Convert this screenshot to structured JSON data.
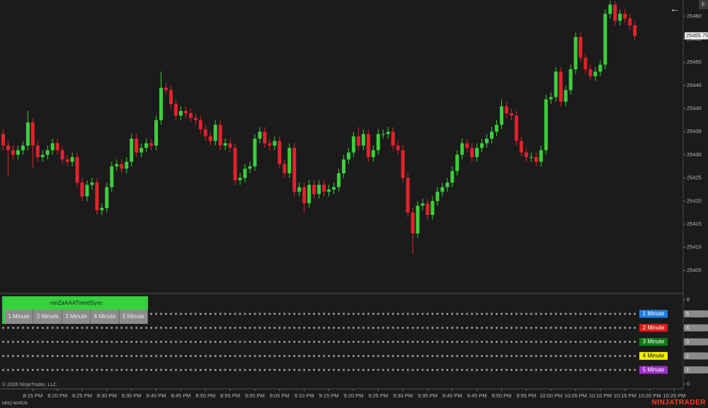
{
  "chart_data": [
    {
      "type": "candlestick",
      "instrument": "MNQ MAR26",
      "copyright": "© 2026 NinjaTrader, LLC",
      "brand": "NINJATRADER",
      "corner_button": "F",
      "up_color": "#3ccf3c",
      "down_color": "#e3222c",
      "open": [
        25434.5,
        25432,
        25431,
        25430,
        25431,
        25432,
        25437,
        25432,
        25429.5,
        25430,
        25431,
        25432.5,
        25431,
        25429,
        25428.5,
        25429.5,
        25424,
        25421,
        25423.5,
        25424,
        25418,
        25418.5,
        25423,
        25427.5,
        25428,
        25427,
        25428.5,
        25433.5,
        25430.5,
        25431.5,
        25432.5,
        25432,
        25437.5,
        25444.5,
        25444,
        25441,
        25438.5,
        25439.5,
        25439,
        25438,
        25437.5,
        25435.5,
        25434,
        25433,
        25436.5,
        25432,
        25432.5,
        25431.5,
        25424.5,
        25425,
        25427,
        25427.5,
        25433.5,
        25435,
        25432.5,
        25432,
        25433,
        25428,
        25426,
        25431.5,
        25422,
        25423,
        25419.5,
        25423.5,
        25421.5,
        25423.5,
        25422,
        25422.5,
        25423,
        25426,
        25429,
        25430.5,
        25434,
        25432,
        25434.5,
        25429.5,
        25431,
        25434.5,
        25434.5,
        25435,
        25432,
        25431,
        25425,
        25417.5,
        25413,
        25419,
        25419.5,
        25417,
        25420,
        25422,
        25423,
        25424,
        25426.5,
        25430,
        25432.5,
        25431.5,
        25429.5,
        25431.5,
        25432.5,
        25433.5,
        25435,
        25436.5,
        25440.5,
        25439,
        25438.5,
        25433,
        25430.5,
        25429.5,
        25429.5,
        25428.5,
        25431,
        25442,
        25442.5,
        25448,
        25441.5,
        25444,
        25448.5,
        25455.5,
        25451,
        25448.5,
        25447,
        25448,
        25449.5,
        25460.5,
        25462.5,
        25459,
        25460.5,
        25459.5,
        25458
      ],
      "high": [
        25435.5,
        25433,
        25432,
        25432,
        25433,
        25439.5,
        25438,
        25433,
        25431,
        25432,
        25433.5,
        25433.5,
        25432,
        25430,
        25430.5,
        25430.5,
        25425,
        25424.5,
        25425,
        25425,
        25419.5,
        25424,
        25428.5,
        25429,
        25429,
        25429.5,
        25434.5,
        25434.5,
        25432.5,
        25433.5,
        25433.5,
        25438.5,
        25448,
        25445.5,
        25445,
        25442,
        25440.5,
        25440.5,
        25440,
        25439,
        25438.5,
        25436.5,
        25435,
        25437.5,
        25437.5,
        25433.5,
        25433.5,
        25432.5,
        25426,
        25428,
        25428.5,
        25434.5,
        25436,
        25436,
        25433.5,
        25434,
        25434,
        25429,
        25432.5,
        25432.5,
        25424,
        25424,
        25424.5,
        25424.5,
        25424.5,
        25424.5,
        25423.5,
        25424,
        25427,
        25430,
        25431.5,
        25435,
        25436,
        25435.5,
        25435.5,
        25432,
        25435.5,
        25435.5,
        25436,
        25436,
        25433,
        25432,
        25426,
        25418.5,
        25420,
        25420.5,
        25420.5,
        25421,
        25423,
        25424,
        25425,
        25427.5,
        25431,
        25433.5,
        25433.5,
        25432.5,
        25432.5,
        25433.5,
        25434.5,
        25436,
        25437.5,
        25442,
        25441.5,
        25440,
        25439.5,
        25434,
        25431.5,
        25430.5,
        25430.5,
        25432,
        25443,
        25443.5,
        25449,
        25449,
        25445,
        25449.5,
        25456.5,
        25456.5,
        25452,
        25449.5,
        25449,
        25450.5,
        25461.5,
        25463.25,
        25463.25,
        25461.5,
        25461.5,
        25460.5,
        25459
      ],
      "low": [
        25431,
        25425.5,
        25429,
        25429,
        25430,
        25431,
        25427,
        25428.5,
        25428.5,
        25429,
        25430,
        25430,
        25428,
        25427.5,
        25427.5,
        25423,
        25420,
        25420,
        25422.5,
        25417,
        25417,
        25417.5,
        25422,
        25426.5,
        25426,
        25426,
        25427.5,
        25429.5,
        25429.5,
        25430.5,
        25431,
        25431,
        25436.5,
        25443,
        25440,
        25437.5,
        25437.5,
        25438,
        25437,
        25436.5,
        25434.5,
        25433,
        25432,
        25432,
        25431,
        25431,
        25430.5,
        25423.5,
        25423.5,
        25424,
        25426,
        25426.5,
        25432.5,
        25431.5,
        25431,
        25431,
        25427,
        25425,
        25425,
        25421,
        25421,
        25417.5,
        25418.5,
        25420.5,
        25420.5,
        25421,
        25421,
        25421.5,
        25422,
        25425,
        25428,
        25429.5,
        25431,
        25431,
        25428.5,
        25428.5,
        25430,
        25433.5,
        25433.5,
        25431,
        25430,
        25424,
        25416.5,
        25408.5,
        25412,
        25418,
        25416,
        25416,
        25419,
        25421,
        25422,
        25423,
        25425.5,
        25429,
        25430.5,
        25428.5,
        25428.5,
        25430.5,
        25431.5,
        25432.5,
        25434,
        25435.5,
        25438,
        25437.5,
        25432,
        25429.5,
        25428.5,
        25428.5,
        25427.5,
        25427.5,
        25430,
        25441,
        25441.5,
        25440.5,
        25440.5,
        25443,
        25447.5,
        25450,
        25447.5,
        25446,
        25446,
        25447,
        25448.5,
        25459.5,
        25458,
        25458,
        25458.5,
        25457,
        25454.75
      ],
      "close": [
        25432,
        25431,
        25430,
        25431,
        25432,
        25437,
        25432,
        25429.5,
        25430,
        25431,
        25432.5,
        25431,
        25429,
        25428.5,
        25429.5,
        25424,
        25421,
        25423.5,
        25424,
        25418,
        25418.5,
        25423,
        25427.5,
        25428,
        25427,
        25428.5,
        25433.5,
        25430.5,
        25431.5,
        25432.5,
        25432,
        25437.5,
        25444.5,
        25444,
        25441,
        25438.5,
        25439.5,
        25439,
        25438,
        25437.5,
        25435.5,
        25434,
        25433,
        25436.5,
        25432,
        25432.5,
        25431.5,
        25424.5,
        25425,
        25427,
        25427.5,
        25433.5,
        25435,
        25432.5,
        25432,
        25433,
        25428,
        25426,
        25431.5,
        25422,
        25423,
        25419.5,
        25423.5,
        25421.5,
        25423.5,
        25422,
        25422.5,
        25423,
        25426,
        25429,
        25430.5,
        25434,
        25432,
        25434.5,
        25429.5,
        25431,
        25434.5,
        25434.5,
        25435,
        25432,
        25431,
        25425,
        25417.5,
        25413,
        25419,
        25419.5,
        25417,
        25420,
        25422,
        25423,
        25424,
        25426.5,
        25430,
        25432.5,
        25431.5,
        25429.5,
        25431.5,
        25432.5,
        25433.5,
        25435,
        25436.5,
        25440.5,
        25439,
        25438.5,
        25433,
        25430.5,
        25429.5,
        25429.5,
        25428.5,
        25431,
        25442,
        25442.5,
        25448,
        25441.5,
        25444,
        25448.5,
        25455.5,
        25451,
        25448.5,
        25447,
        25448,
        25449.5,
        25460.5,
        25462.5,
        25459,
        25460.5,
        25459.5,
        25458,
        25455.75
      ],
      "ylim": [
        25400,
        25463.5
      ],
      "yticks": [
        25405,
        25410,
        25415,
        25420,
        25425,
        25430,
        25435,
        25440,
        25445,
        25450,
        25455,
        25460
      ],
      "xticks": [
        {
          "value": 6,
          "label": "8:15 PM"
        },
        {
          "value": 11,
          "label": "8:20 PM"
        },
        {
          "value": 16,
          "label": "8:25 PM"
        },
        {
          "value": 21,
          "label": "8:30 PM"
        },
        {
          "value": 26,
          "label": "8:35 PM"
        },
        {
          "value": 31,
          "label": "8:40 PM"
        },
        {
          "value": 36,
          "label": "8:45 PM"
        },
        {
          "value": 41,
          "label": "8:50 PM"
        },
        {
          "value": 46,
          "label": "8:55 PM"
        },
        {
          "value": 51,
          "label": "9:00 PM"
        },
        {
          "value": 56,
          "label": "9:05 PM"
        },
        {
          "value": 61,
          "label": "9:10 PM"
        },
        {
          "value": 66,
          "label": "9:15 PM"
        },
        {
          "value": 71,
          "label": "9:20 PM"
        },
        {
          "value": 76,
          "label": "9:25 PM"
        },
        {
          "value": 81,
          "label": "9:30 PM"
        },
        {
          "value": 86,
          "label": "9:35 PM"
        },
        {
          "value": 91,
          "label": "9:40 PM"
        },
        {
          "value": 96,
          "label": "9:45 PM"
        },
        {
          "value": 101,
          "label": "9:50 PM"
        },
        {
          "value": 106,
          "label": "9:55 PM"
        },
        {
          "value": 111,
          "label": "10:00 PM"
        },
        {
          "value": 116,
          "label": "10:05 PM"
        },
        {
          "value": 121,
          "label": "10:10 PM"
        },
        {
          "value": 126,
          "label": "10:15 PM"
        },
        {
          "value": 131,
          "label": "10:20 PM"
        },
        {
          "value": 136,
          "label": "10:25 PM"
        }
      ]
    },
    {
      "type": "dots",
      "title": "ninZaAAATrendSync",
      "dot_color": "#9a9a9a",
      "series": [
        {
          "name": "1 Minute",
          "color": "#1e7fe6",
          "level": 5
        },
        {
          "name": "2 Minute",
          "color": "#e01a1a",
          "level": 4
        },
        {
          "name": "3 Minute",
          "color": "#0f7a12",
          "level": 3
        },
        {
          "name": "4 Minute",
          "color": "#f4f000",
          "level": 2
        },
        {
          "name": "5 Minute",
          "color": "#9b2fc9",
          "level": 1
        }
      ],
      "ylim": [
        0,
        6
      ],
      "yticks": [
        0,
        1,
        2,
        3,
        4,
        5,
        6
      ]
    }
  ]
}
